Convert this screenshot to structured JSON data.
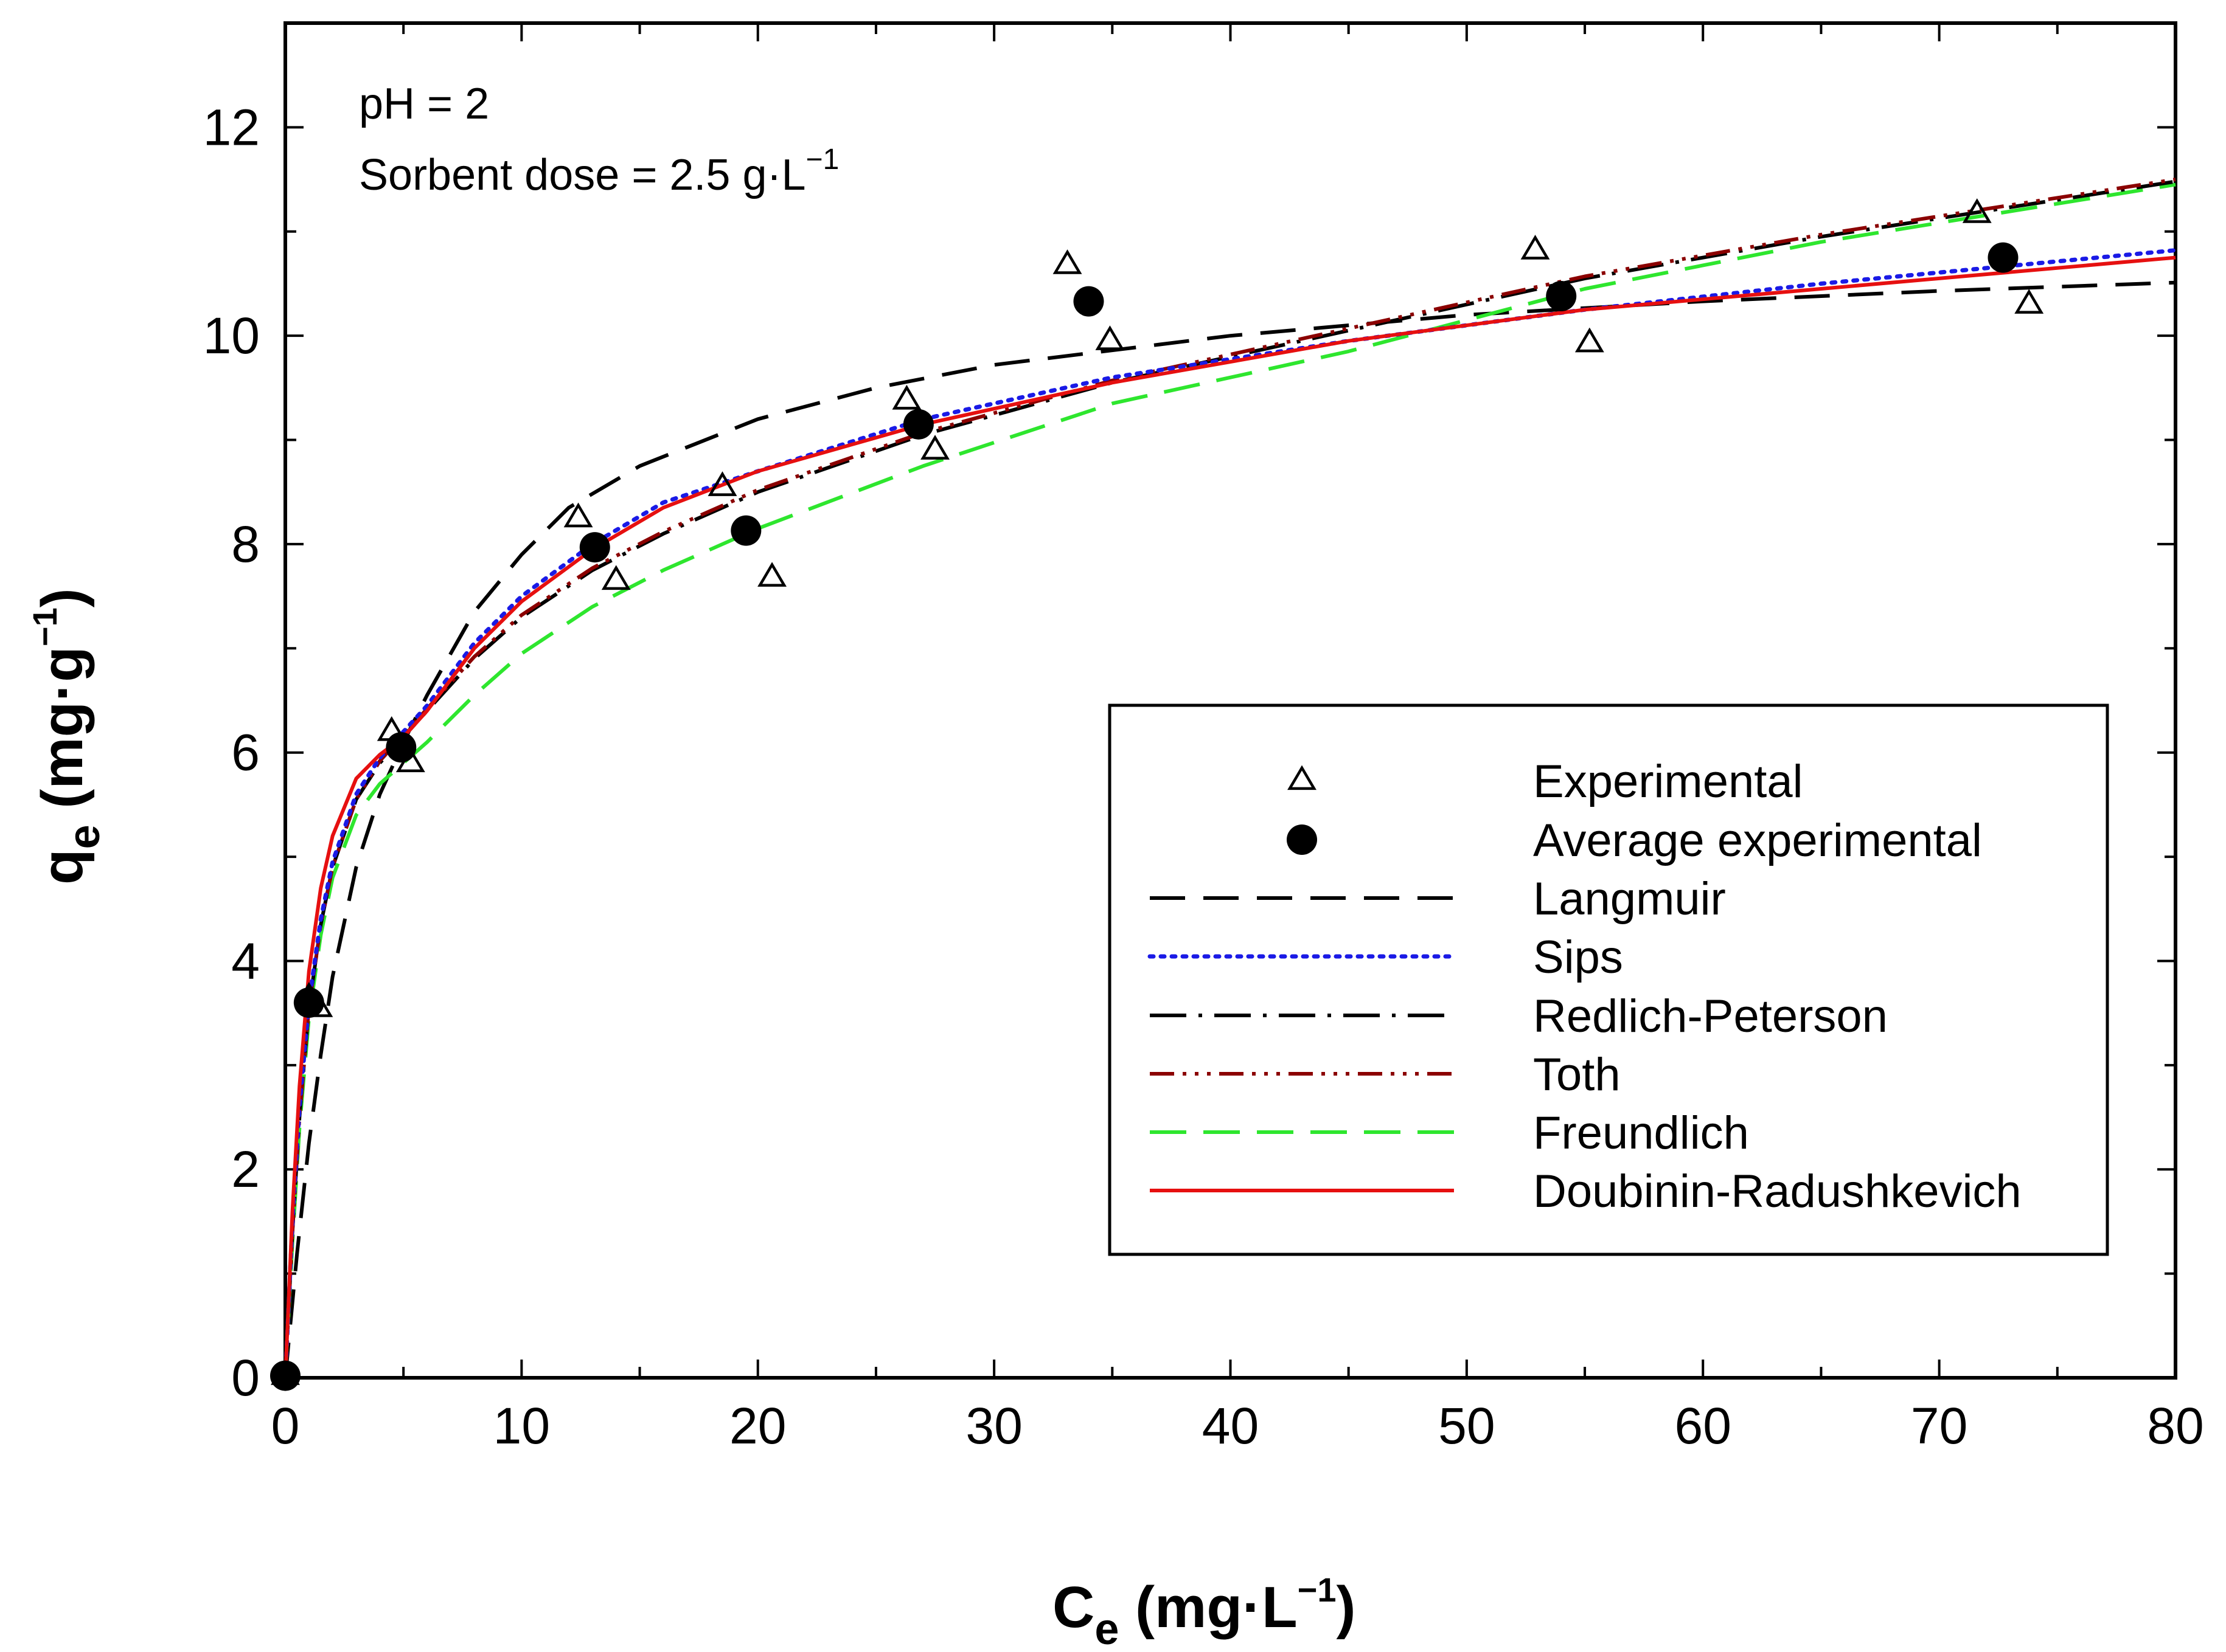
{
  "chart_data": {
    "type": "scatter",
    "x": {
      "title_main": "C",
      "title_sub": "e",
      "title_unit_pre": " (mg·L",
      "title_unit_sup": "−1",
      "title_unit_post": ")",
      "range": [
        0,
        80
      ],
      "ticks": [
        0,
        10,
        20,
        30,
        40,
        50,
        60,
        70,
        80
      ],
      "tick_labels": [
        "0",
        "10",
        "20",
        "30",
        "40",
        "50",
        "60",
        "70",
        "80"
      ]
    },
    "y": {
      "title_main": "q",
      "title_sub": "e",
      "title_unit_pre": " (mg·g",
      "title_unit_sup": "−1",
      "title_unit_post": ")",
      "range": [
        0,
        13
      ],
      "ticks": [
        0,
        2,
        4,
        6,
        8,
        10,
        12
      ],
      "tick_labels": [
        "0",
        "2",
        "4",
        "6",
        "8",
        "10",
        "12"
      ]
    },
    "annotations": {
      "line1": "pH = 2",
      "line2_pre": "Sorbent dose = 2.5 g·L",
      "line2_sup": "−1"
    },
    "legend_position": "lower-right",
    "experimental": {
      "name": "Experimental",
      "x": [
        0,
        1.0,
        1.4,
        4.5,
        5.3,
        12.4,
        14.0,
        18.5,
        20.6,
        26.3,
        27.5,
        33.1,
        34.9,
        52.9,
        55.2,
        71.6,
        73.8
      ],
      "y": [
        0.02,
        3.65,
        3.55,
        6.2,
        5.9,
        8.25,
        7.65,
        8.55,
        7.68,
        9.38,
        8.9,
        10.68,
        9.95,
        10.82,
        9.93,
        11.17,
        10.3
      ]
    },
    "average": {
      "name": "Average experimental",
      "x": [
        0,
        1.0,
        4.9,
        13.1,
        19.5,
        26.8,
        34.0,
        54.0,
        72.7
      ],
      "y": [
        0.02,
        3.6,
        6.05,
        7.97,
        8.13,
        9.15,
        10.33,
        10.38,
        10.75
      ]
    },
    "series": [
      {
        "name": "Langmuir",
        "x": [
          0,
          0.5,
          1,
          1.5,
          2,
          3,
          4,
          5,
          6,
          8,
          10,
          12,
          15,
          20,
          25,
          30,
          40,
          50,
          60,
          70,
          80
        ],
        "y": [
          0,
          1.2,
          2.25,
          3.1,
          3.85,
          4.9,
          5.6,
          6.1,
          6.55,
          7.35,
          7.9,
          8.35,
          8.75,
          9.2,
          9.5,
          9.72,
          10.0,
          10.2,
          10.33,
          10.43,
          10.51
        ],
        "color": "#000000",
        "dash": "58 30"
      },
      {
        "name": "Sips",
        "x": [
          0,
          0.3,
          0.6,
          1,
          1.5,
          2,
          3,
          4,
          5,
          6,
          8,
          10,
          13,
          16,
          20,
          27,
          35,
          45,
          55,
          65,
          80
        ],
        "y": [
          0,
          1.5,
          2.6,
          3.6,
          4.4,
          4.95,
          5.6,
          5.95,
          6.2,
          6.45,
          7.05,
          7.5,
          8.0,
          8.4,
          8.7,
          9.2,
          9.6,
          9.95,
          10.25,
          10.5,
          10.82
        ],
        "color": "#1a1ae6",
        "dash": "6 12"
      },
      {
        "name": "Redlich-Peterson",
        "x": [
          0,
          0.3,
          0.6,
          1,
          1.5,
          2,
          3,
          4,
          5,
          6,
          8,
          10,
          13,
          16,
          20,
          27,
          35,
          45,
          55,
          65,
          80
        ],
        "y": [
          0,
          1.4,
          2.5,
          3.55,
          4.35,
          4.9,
          5.55,
          5.9,
          6.15,
          6.4,
          6.9,
          7.3,
          7.75,
          8.1,
          8.5,
          9.05,
          9.55,
          10.05,
          10.55,
          10.95,
          11.48
        ],
        "color": "#000000",
        "dash": "60 20 6 20"
      },
      {
        "name": "Toth",
        "x": [
          0,
          0.3,
          0.6,
          1,
          1.5,
          2,
          3,
          4,
          5,
          6,
          8,
          10,
          13,
          16,
          20,
          27,
          35,
          45,
          55,
          65,
          80
        ],
        "y": [
          0,
          1.4,
          2.5,
          3.55,
          4.35,
          4.9,
          5.55,
          5.92,
          6.17,
          6.42,
          6.92,
          7.32,
          7.77,
          8.12,
          8.52,
          9.07,
          9.57,
          10.07,
          10.57,
          10.97,
          11.5
        ],
        "color": "#8b0000",
        "dash": "40 14 6 14 6 14 6 14"
      },
      {
        "name": "Freundlich",
        "x": [
          0,
          0.3,
          0.6,
          1,
          1.5,
          2,
          3,
          4,
          5,
          6,
          8,
          10,
          13,
          16,
          20,
          27,
          35,
          45,
          55,
          65,
          80
        ],
        "y": [
          0,
          1.3,
          2.4,
          3.45,
          4.25,
          4.8,
          5.4,
          5.7,
          5.9,
          6.1,
          6.55,
          6.95,
          7.4,
          7.75,
          8.15,
          8.75,
          9.35,
          9.85,
          10.45,
          10.9,
          11.45
        ],
        "color": "#2ee62e",
        "dash": "60 28"
      },
      {
        "name": "Doubinin-Radushkevich",
        "x": [
          0,
          0.3,
          0.6,
          1,
          1.5,
          2,
          3,
          4,
          5,
          6,
          8,
          10,
          13,
          16,
          20,
          27,
          35,
          45,
          55,
          65,
          80
        ],
        "y": [
          0,
          1.6,
          2.8,
          3.9,
          4.7,
          5.2,
          5.75,
          5.98,
          6.15,
          6.4,
          7.0,
          7.45,
          7.95,
          8.35,
          8.7,
          9.15,
          9.55,
          9.95,
          10.25,
          10.45,
          10.75
        ],
        "color": "#e61010",
        "dash": ""
      }
    ]
  }
}
